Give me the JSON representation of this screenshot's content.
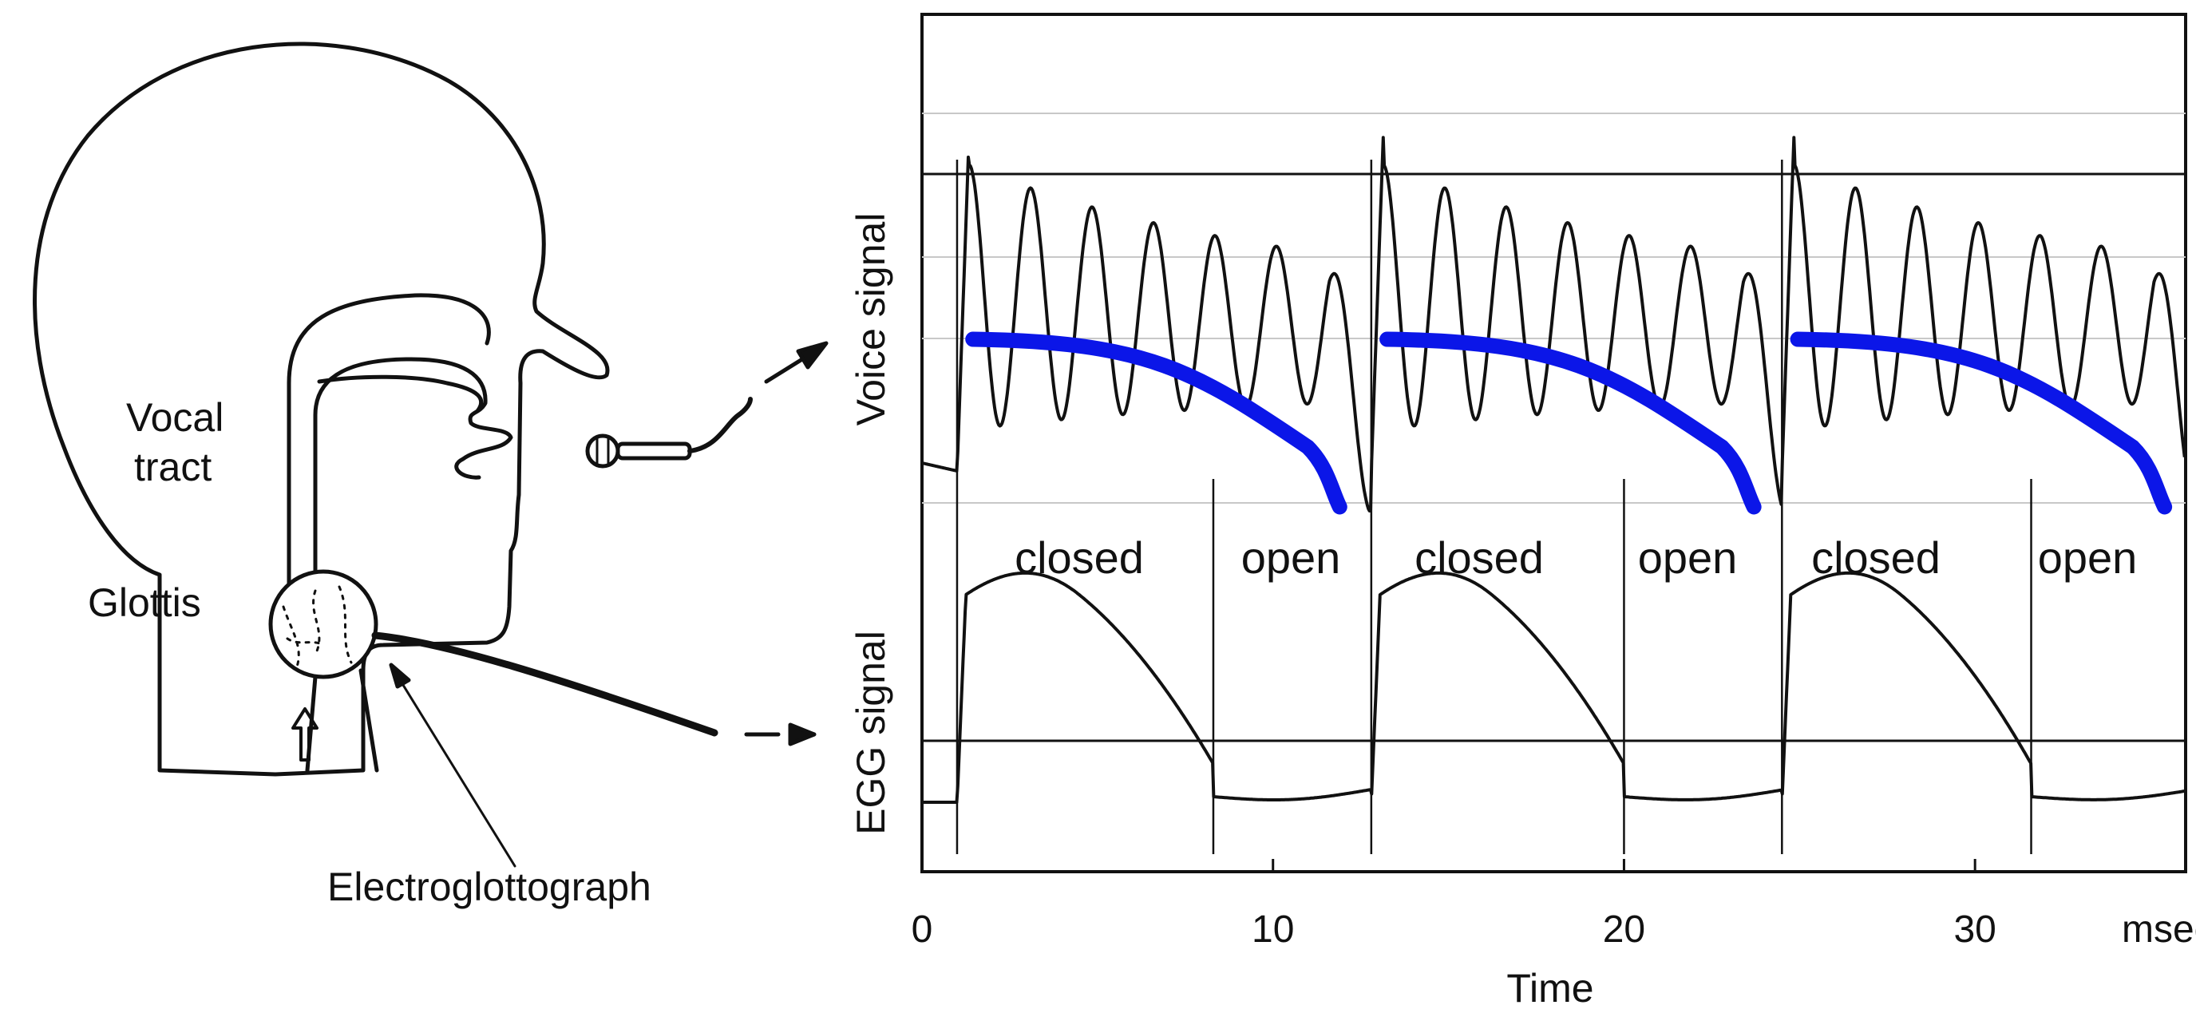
{
  "head_diagram": {
    "vocal_tract_label_line1": "Vocal",
    "vocal_tract_label_line2": "tract",
    "glottis_label": "Glottis",
    "electroglottograph_label": "Electroglottograph"
  },
  "plot": {
    "voice_signal_label": "Voice signal",
    "egg_signal_label": "EGG signal",
    "phases": [
      {
        "label": "closed"
      },
      {
        "label": "open"
      },
      {
        "label": "closed"
      },
      {
        "label": "open"
      },
      {
        "label": "closed"
      },
      {
        "label": "open"
      }
    ],
    "x_axis": {
      "ticks": [
        "0",
        "10",
        "20",
        "30"
      ],
      "unit": "msec",
      "label": "Time"
    },
    "xlim": [
      0,
      36
    ],
    "cycle_starts_ms": [
      1.0,
      12.8,
      24.5
    ],
    "closed_to_open_ms": [
      8.3,
      20.0,
      31.6
    ],
    "colors": {
      "trace": "#111111",
      "closed_phase_curve": "#0b16e8",
      "grid": "#c8c8c8"
    }
  }
}
